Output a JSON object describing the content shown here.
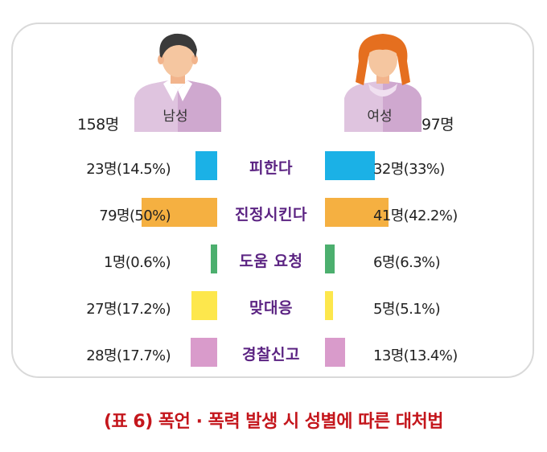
{
  "chart_data": {
    "type": "bar",
    "categories": [
      "피한다",
      "진정시킨다",
      "도움 요청",
      "맞대응",
      "경찰신고"
    ],
    "colors": [
      "#1bb1e6",
      "#f5b041",
      "#4caf6e",
      "#fde74c",
      "#d99bcb"
    ],
    "male": {
      "label": "남성",
      "total": "158명",
      "values": [
        14.5,
        50,
        0.6,
        17.2,
        17.7
      ],
      "labels": [
        "23명(14.5%)",
        "79명(50%)",
        "1명(0.6%)",
        "27명(17.2%)",
        "28명(17.7%)"
      ]
    },
    "female": {
      "label": "여성",
      "total": "97명",
      "values": [
        33,
        42.2,
        6.3,
        5.1,
        13.4
      ],
      "labels": [
        "32명(33%)",
        "41명(42.2%)",
        "6명(6.3%)",
        "5명(5.1%)",
        "13명(13.4%)"
      ]
    }
  },
  "caption": "(표 6)  폭언 · 폭력 발생 시 성별에 따른 대처법"
}
